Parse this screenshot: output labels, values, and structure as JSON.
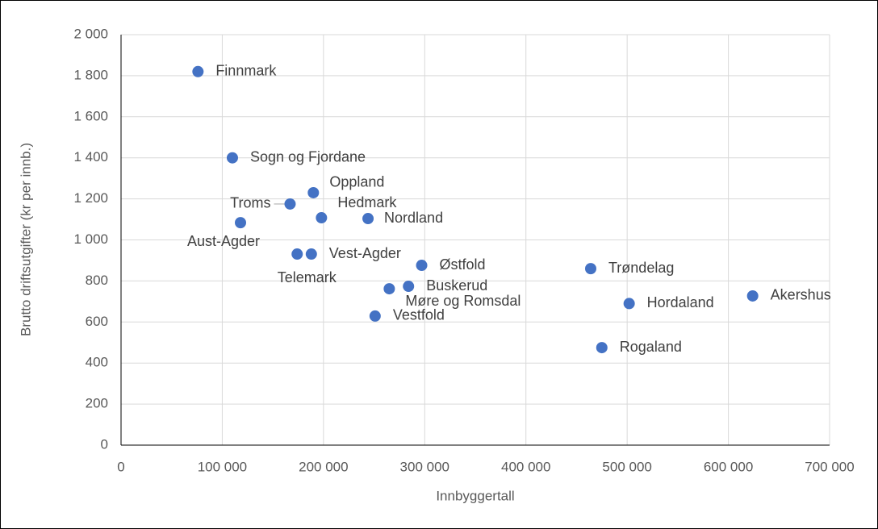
{
  "chart_data": {
    "type": "scatter",
    "xlabel": "Innbyggertall",
    "ylabel": "Brutto driftsutgifter (kr per innb.)",
    "color": "#4472c4",
    "grid": true,
    "points": [
      "Finnmark",
      "Sogn og Fjordane",
      "Oppland",
      "Troms",
      "Hedmark",
      "Nordland",
      "Aust-Agder",
      "Telemark",
      "Vest-Agder",
      "Østfold",
      "Trøndelag",
      "Buskerud",
      "Møre og Romsdal",
      "Akershus",
      "Hordaland",
      "Vestfold",
      "Rogaland"
    ],
    "x": [
      76000,
      110000,
      190000,
      167000,
      198000,
      244000,
      118000,
      174000,
      188000,
      297000,
      464000,
      284000,
      265000,
      624000,
      502000,
      251000,
      475000
    ],
    "values": [
      1820,
      1400,
      1230,
      1175,
      1108,
      1104,
      1084,
      931,
      931,
      876,
      860,
      774,
      762,
      727,
      690,
      629,
      475
    ],
    "xlim": [
      0,
      700000
    ],
    "xticks": [
      0,
      {
        "value": 100000,
        "label": "100 000"
      },
      {
        "value": 200000,
        "label": "200 000"
      },
      {
        "value": 300000,
        "label": "300 000"
      },
      {
        "value": 400000,
        "label": "400 000"
      },
      {
        "value": 500000,
        "label": "500 000"
      },
      {
        "value": 600000,
        "label": "600 000"
      },
      {
        "value": 700000,
        "label": "700 000"
      }
    ],
    "ylim": [
      0,
      2000
    ],
    "yticks": [
      0,
      200,
      400,
      600,
      800,
      {
        "value": 1000,
        "label": "1 000"
      },
      {
        "value": 1200,
        "label": "1 200"
      },
      {
        "value": 1400,
        "label": "1 400"
      },
      {
        "value": 1600,
        "label": "1 600"
      },
      {
        "value": 1800,
        "label": "1 800"
      },
      {
        "value": 2000,
        "label": "2 000"
      }
    ]
  }
}
